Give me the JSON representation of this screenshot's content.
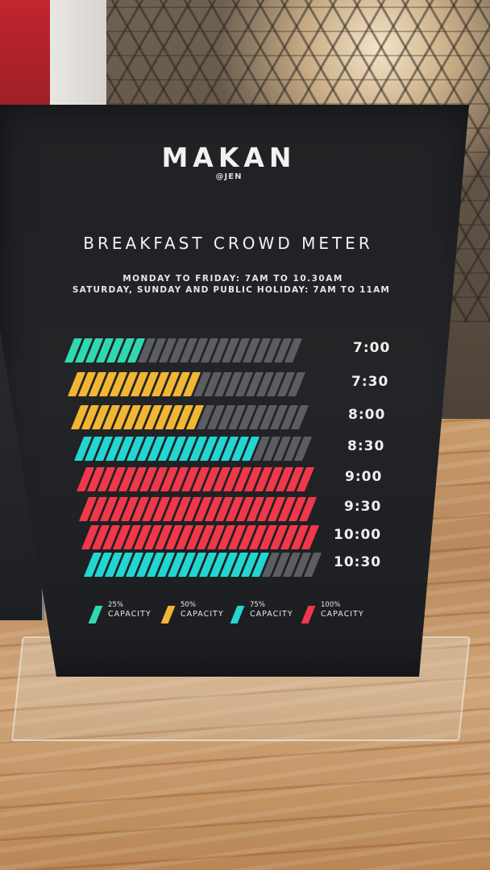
{
  "brand": {
    "name": "MAKAN",
    "handle": "@JEN"
  },
  "sign": {
    "title": "BREAKFAST CROWD METER",
    "hours_weekday": "MONDAY TO FRIDAY: 7AM TO 10.30AM",
    "hours_weekend": "SATURDAY, SUNDAY AND PUBLIC HOLIDAY: 7AM TO 11AM"
  },
  "colors": {
    "green": "#2fd9b0",
    "yellow": "#f2b632",
    "teal": "#22d6d2",
    "red": "#f0384a",
    "empty": "#5b5d60"
  },
  "meter": {
    "total_segments": 22,
    "rows": [
      {
        "time": "7:00",
        "capacity": 25,
        "color": "green",
        "filled": 7
      },
      {
        "time": "7:30",
        "capacity": 50,
        "color": "yellow",
        "filled": 12
      },
      {
        "time": "8:00",
        "capacity": 50,
        "color": "yellow",
        "filled": 12
      },
      {
        "time": "8:30",
        "capacity": 75,
        "color": "teal",
        "filled": 17
      },
      {
        "time": "9:00",
        "capacity": 100,
        "color": "red",
        "filled": 22
      },
      {
        "time": "9:30",
        "capacity": 100,
        "color": "red",
        "filled": 22
      },
      {
        "time": "10:00",
        "capacity": 100,
        "color": "red",
        "filled": 22
      },
      {
        "time": "10:30",
        "capacity": 75,
        "color": "teal",
        "filled": 17
      }
    ]
  },
  "legend": [
    {
      "percent": "25%",
      "label": "CAPACITY",
      "color": "green"
    },
    {
      "percent": "50%",
      "label": "CAPACITY",
      "color": "yellow"
    },
    {
      "percent": "75%",
      "label": "CAPACITY",
      "color": "teal"
    },
    {
      "percent": "100%",
      "label": "CAPACITY",
      "color": "red"
    }
  ]
}
